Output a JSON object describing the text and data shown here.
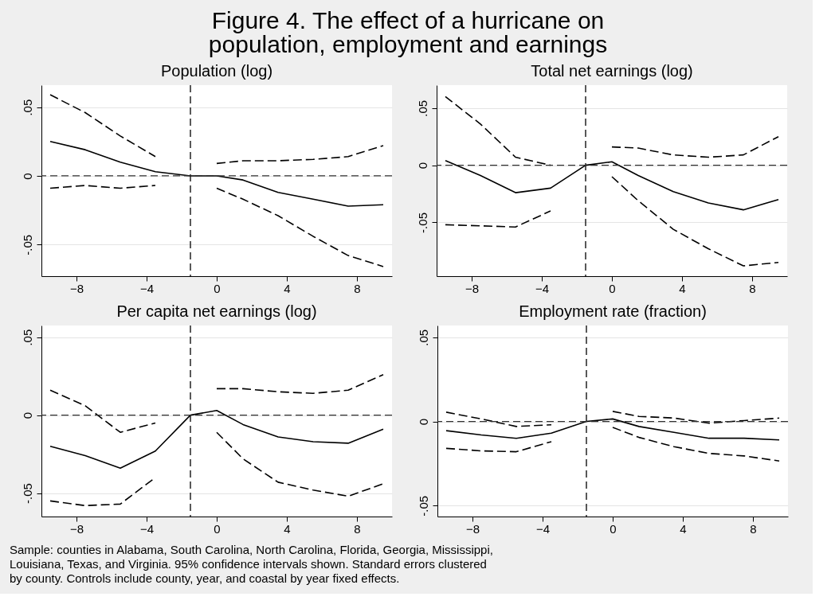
{
  "chart_data": [
    {
      "type": "other",
      "title": "Figure 4. The effect of a hurricane on population, employment and earnings",
      "annotations": [
        "Sample: counties in Alabama, South Carolina, North Carolina, Florida, Georgia, Mississippi, Louisiana, Texas, and Virginia. 95% confidence intervals shown. Standard errors clustered by county. Controls include county, year, and coastal by year fixed effects."
      ]
    },
    {
      "type": "line",
      "title": "Population (log)",
      "x": [
        -9.5,
        -7.5,
        -5.5,
        -3.5,
        -1.5,
        0,
        1.5,
        3.5,
        5.5,
        7.5,
        9.5
      ],
      "xlim": [
        -10,
        10
      ],
      "xticks": [
        -8,
        -4,
        0,
        4,
        8
      ],
      "ylim": [
        -0.073,
        0.066
      ],
      "yticks": [
        {
          "value": -0.05,
          "label": "-.05"
        },
        {
          "value": 0,
          "label": "0"
        },
        {
          "value": 0.05,
          "label": ".05"
        }
      ],
      "grid": "y",
      "series": [
        {
          "color": "#000000",
          "line_style": "solid",
          "values": [
            0.025,
            0.019,
            0.01,
            0.003,
            0,
            0,
            -0.003,
            -0.012,
            -0.017,
            -0.022,
            -0.021
          ]
        },
        {
          "color": "#000000",
          "line_style": "dashed",
          "values": [
            0.059,
            0.046,
            0.029,
            0.014,
            null,
            0.009,
            0.011,
            0.011,
            0.012,
            0.014,
            0.022
          ]
        },
        {
          "color": "#000000",
          "line_style": "dashed",
          "values": [
            -0.009,
            -0.007,
            -0.009,
            -0.007,
            null,
            -0.009,
            -0.017,
            -0.029,
            -0.044,
            -0.058,
            -0.066
          ]
        }
      ],
      "ref_lines": [
        {
          "axis": "x",
          "value": -1.5,
          "color": "#000000",
          "line_style": "dashed"
        },
        {
          "axis": "y",
          "value": 0,
          "color": "#333333",
          "line_style": "dashed"
        }
      ]
    },
    {
      "type": "line",
      "title": "Total net earnings (log)",
      "x": [
        -9.5,
        -7.5,
        -5.5,
        -3.5,
        -1.5,
        0,
        1.5,
        3.5,
        5.5,
        7.5,
        9.5
      ],
      "xlim": [
        -10,
        10
      ],
      "xticks": [
        -8,
        -4,
        0,
        4,
        8
      ],
      "ylim": [
        -0.097,
        0.07
      ],
      "yticks": [
        {
          "value": -0.05,
          "label": "-.05"
        },
        {
          "value": 0,
          "label": "0"
        },
        {
          "value": 0.05,
          "label": ".05"
        }
      ],
      "grid": "y",
      "series": [
        {
          "color": "#000000",
          "line_style": "solid",
          "values": [
            0.004,
            -0.009,
            -0.024,
            -0.02,
            0,
            0.003,
            -0.009,
            -0.023,
            -0.033,
            -0.039,
            -0.03
          ]
        },
        {
          "color": "#000000",
          "line_style": "dashed",
          "values": [
            0.06,
            0.036,
            0.007,
            0.0,
            null,
            0.016,
            0.015,
            0.009,
            0.007,
            0.009,
            0.025
          ]
        },
        {
          "color": "#000000",
          "line_style": "dashed",
          "values": [
            -0.052,
            -0.053,
            -0.054,
            -0.04,
            null,
            -0.01,
            -0.031,
            -0.056,
            -0.073,
            -0.088,
            -0.085
          ]
        }
      ],
      "ref_lines": [
        {
          "axis": "x",
          "value": -1.5,
          "color": "#000000",
          "line_style": "dashed"
        },
        {
          "axis": "y",
          "value": 0,
          "color": "#333333",
          "line_style": "dashed"
        }
      ]
    },
    {
      "type": "line",
      "title": "Per capita net earnings (log)",
      "x": [
        -9.5,
        -7.5,
        -5.5,
        -3.5,
        -1.5,
        0,
        1.5,
        3.5,
        5.5,
        7.5,
        9.5
      ],
      "xlim": [
        -10,
        10
      ],
      "xticks": [
        -8,
        -4,
        0,
        4,
        8
      ],
      "ylim": [
        -0.065,
        0.0575
      ],
      "yticks": [
        {
          "value": -0.05,
          "label": "-.05"
        },
        {
          "value": 0,
          "label": "0"
        },
        {
          "value": 0.05,
          "label": ".05"
        }
      ],
      "grid": "y",
      "series": [
        {
          "color": "#000000",
          "line_style": "solid",
          "values": [
            -0.02,
            -0.026,
            -0.034,
            -0.023,
            0,
            0.003,
            -0.006,
            -0.014,
            -0.017,
            -0.018,
            -0.009
          ]
        },
        {
          "color": "#000000",
          "line_style": "dashed",
          "values": [
            0.016,
            0.006,
            -0.011,
            -0.005,
            null,
            0.017,
            0.017,
            0.015,
            0.014,
            0.016,
            0.026
          ]
        },
        {
          "color": "#000000",
          "line_style": "dashed",
          "values": [
            -0.055,
            -0.058,
            -0.057,
            -0.04,
            null,
            -0.011,
            -0.028,
            -0.043,
            -0.048,
            -0.052,
            -0.044
          ]
        }
      ],
      "ref_lines": [
        {
          "axis": "x",
          "value": -1.5,
          "color": "#000000",
          "line_style": "dashed"
        },
        {
          "axis": "y",
          "value": 0,
          "color": "#333333",
          "line_style": "dashed"
        }
      ]
    },
    {
      "type": "line",
      "title": "Employment rate (fraction)",
      "x": [
        -9.5,
        -7.5,
        -5.5,
        -3.5,
        -1.5,
        0,
        1.5,
        3.5,
        5.5,
        7.5,
        9.5
      ],
      "xlim": [
        -10,
        10
      ],
      "xticks": [
        -8,
        -4,
        0,
        4,
        8
      ],
      "ylim": [
        -0.0565,
        0.057
      ],
      "yticks": [
        {
          "value": -0.05,
          "label": "-.05"
        },
        {
          "value": 0,
          "label": "0"
        },
        {
          "value": 0.05,
          "label": ".05"
        }
      ],
      "grid": "y",
      "series": [
        {
          "color": "#000000",
          "line_style": "solid",
          "values": [
            -0.0055,
            -0.008,
            -0.01,
            -0.007,
            0,
            0.0015,
            -0.003,
            -0.0065,
            -0.01,
            -0.01,
            -0.011
          ]
        },
        {
          "color": "#000000",
          "line_style": "dashed",
          "values": [
            0.0055,
            0.0015,
            -0.003,
            -0.002,
            null,
            0.006,
            0.003,
            0.002,
            -0.001,
            0.0005,
            0.002
          ]
        },
        {
          "color": "#000000",
          "line_style": "dashed",
          "values": [
            -0.016,
            -0.0175,
            -0.018,
            -0.012,
            null,
            -0.0035,
            -0.0095,
            -0.015,
            -0.019,
            -0.0205,
            -0.0235
          ]
        }
      ],
      "ref_lines": [
        {
          "axis": "x",
          "value": -1.5,
          "color": "#000000",
          "line_style": "dashed"
        },
        {
          "axis": "y",
          "value": 0,
          "color": "#333333",
          "line_style": "dashed"
        }
      ]
    }
  ]
}
